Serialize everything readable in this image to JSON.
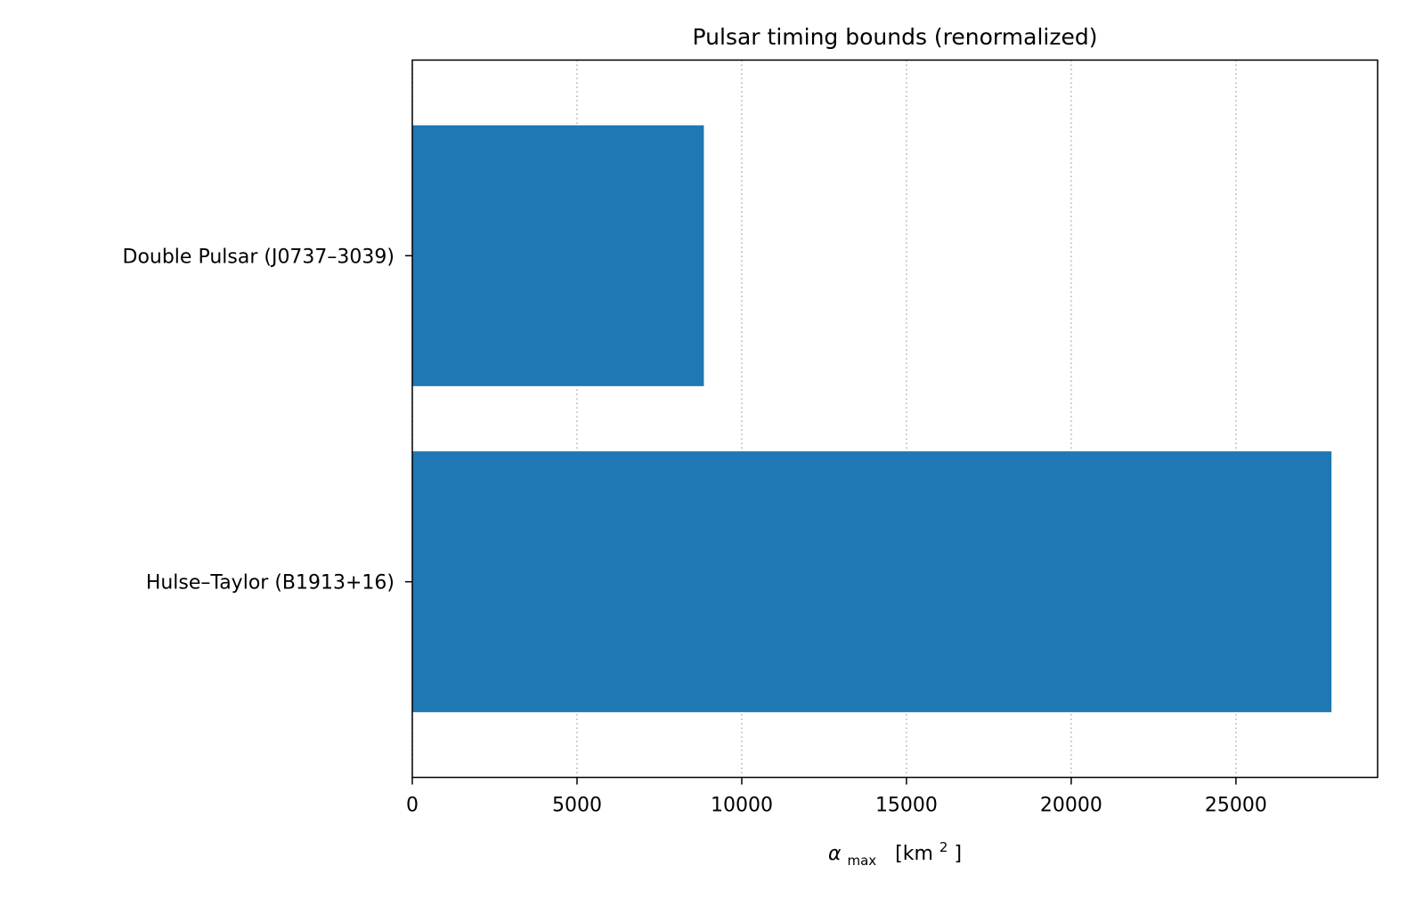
{
  "chart_data": {
    "type": "bar",
    "orientation": "horizontal",
    "title": "Pulsar timing bounds (renormalized)",
    "xlabel": {
      "symbol": "α",
      "subscript": "max",
      "unit_open": "[km",
      "unit_superscript": "2",
      "unit_close": "]"
    },
    "ylabel": "",
    "categories": [
      "Double Pulsar (J0737–3039)",
      "Hulse–Taylor (B1913+16)"
    ],
    "values": [
      8850,
      27900
    ],
    "xlim": [
      0,
      29300
    ],
    "xticks": [
      0,
      5000,
      10000,
      15000,
      20000,
      25000
    ],
    "xtick_labels": [
      "0",
      "5000",
      "10000",
      "15000",
      "20000",
      "25000"
    ],
    "grid": "x-axis, dotted",
    "legend": "none",
    "bar_color": "#1f77b4",
    "grid_color": "#b0b0b0"
  }
}
